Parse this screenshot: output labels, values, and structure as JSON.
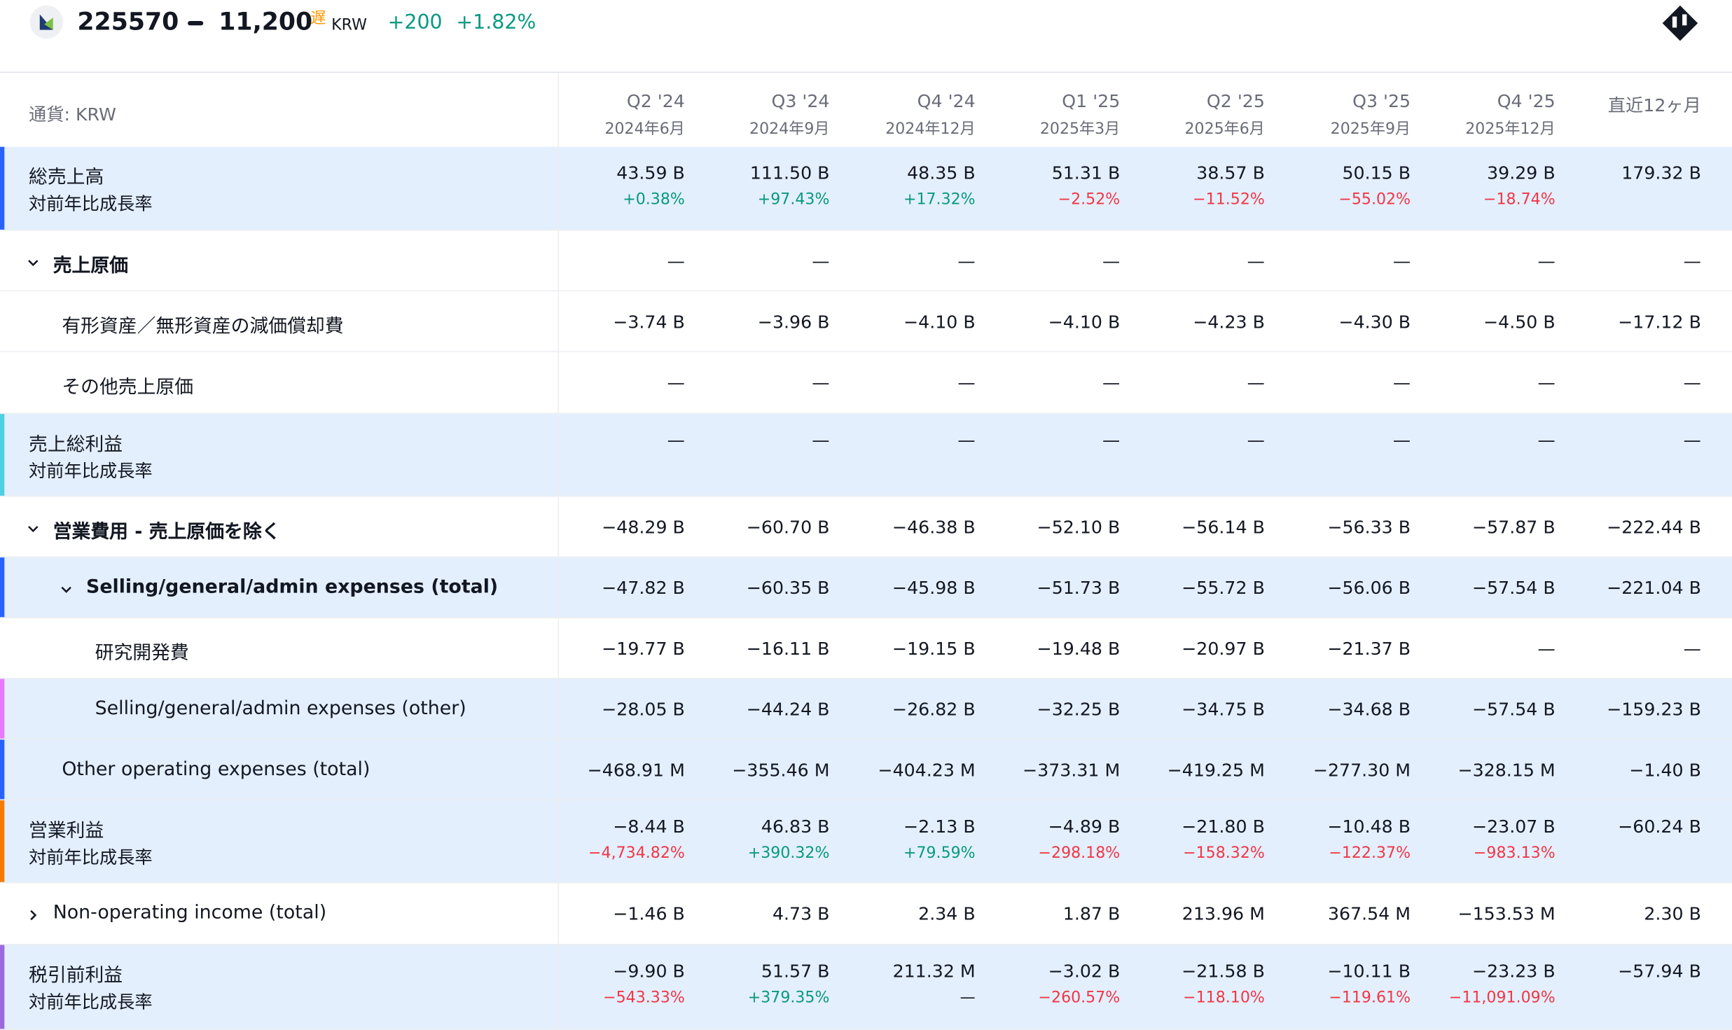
{
  "header": {
    "symbol": "225570",
    "price": "11,200",
    "delayed": "遅",
    "currency": "KRW",
    "change": "+200",
    "change_pct": "+1.82%"
  },
  "table": {
    "currency_label": "通貨: KRW",
    "columns": [
      {
        "period": "Q2 '24",
        "date": "2024年6月"
      },
      {
        "period": "Q3 '24",
        "date": "2024年9月"
      },
      {
        "period": "Q4 '24",
        "date": "2024年12月"
      },
      {
        "period": "Q1 '25",
        "date": "2025年3月"
      },
      {
        "period": "Q2 '25",
        "date": "2025年6月"
      },
      {
        "period": "Q3 '25",
        "date": "2025年9月"
      },
      {
        "period": "Q4 '25",
        "date": "2025年12月"
      },
      {
        "period": "直近12ヶ月"
      }
    ],
    "rows": [
      {
        "label": "総売上高",
        "values": [
          "43.59 B",
          "111.50 B",
          "48.35 B",
          "51.31 B",
          "38.57 B",
          "50.15 B",
          "39.29 B",
          "179.32 B"
        ],
        "growth_label": "対前年比成長率",
        "growth": [
          "+0.38%",
          "+97.43%",
          "+17.32%",
          "−2.52%",
          "−11.52%",
          "−55.02%",
          "−18.74%"
        ]
      },
      {
        "label": "売上原価",
        "values": [
          "—",
          "—",
          "—",
          "—",
          "—",
          "—",
          "—",
          "—"
        ]
      },
      {
        "label": "有形資産／無形資産の減価償却費",
        "values": [
          "−3.74 B",
          "−3.96 B",
          "−4.10 B",
          "−4.10 B",
          "−4.23 B",
          "−4.30 B",
          "−4.50 B",
          "−17.12 B"
        ]
      },
      {
        "label": "その他売上原価",
        "values": [
          "—",
          "—",
          "—",
          "—",
          "—",
          "—",
          "—",
          "—"
        ]
      },
      {
        "label": "売上総利益",
        "values": [
          "—",
          "—",
          "—",
          "—",
          "—",
          "—",
          "—",
          "—"
        ],
        "growth_label": "対前年比成長率"
      },
      {
        "label": "営業費用 - 売上原価を除く",
        "values": [
          "−48.29 B",
          "−60.70 B",
          "−46.38 B",
          "−52.10 B",
          "−56.14 B",
          "−56.33 B",
          "−57.87 B",
          "−222.44 B"
        ]
      },
      {
        "label": "Selling/general/admin expenses (total)",
        "values": [
          "−47.82 B",
          "−60.35 B",
          "−45.98 B",
          "−51.73 B",
          "−55.72 B",
          "−56.06 B",
          "−57.54 B",
          "−221.04 B"
        ]
      },
      {
        "label": "研究開発費",
        "values": [
          "−19.77 B",
          "−16.11 B",
          "−19.15 B",
          "−19.48 B",
          "−20.97 B",
          "−21.37 B",
          "—",
          "—"
        ]
      },
      {
        "label": "Selling/general/admin expenses (other)",
        "values": [
          "−28.05 B",
          "−44.24 B",
          "−26.82 B",
          "−32.25 B",
          "−34.75 B",
          "−34.68 B",
          "−57.54 B",
          "−159.23 B"
        ]
      },
      {
        "label": "Other operating expenses (total)",
        "values": [
          "−468.91 M",
          "−355.46 M",
          "−404.23 M",
          "−373.31 M",
          "−419.25 M",
          "−277.30 M",
          "−328.15 M",
          "−1.40 B"
        ]
      },
      {
        "label": "営業利益",
        "values": [
          "−8.44 B",
          "46.83 B",
          "−2.13 B",
          "−4.89 B",
          "−21.80 B",
          "−10.48 B",
          "−23.07 B",
          "−60.24 B"
        ],
        "growth_label": "対前年比成長率",
        "growth": [
          "−4,734.82%",
          "+390.32%",
          "+79.59%",
          "−298.18%",
          "−158.32%",
          "−122.37%",
          "−983.13%"
        ]
      },
      {
        "label": "Non-operating income (total)",
        "values": [
          "−1.46 B",
          "4.73 B",
          "2.34 B",
          "1.87 B",
          "213.96 M",
          "367.54 M",
          "−153.53 M",
          "2.30 B"
        ]
      },
      {
        "label": "税引前利益",
        "values": [
          "−9.90 B",
          "51.57 B",
          "211.32 M",
          "−3.02 B",
          "−21.58 B",
          "−10.11 B",
          "−23.23 B",
          "−57.94 B"
        ],
        "growth_label": "対前年比成長率",
        "growth": [
          "−543.33%",
          "+379.35%",
          "—",
          "−260.57%",
          "−118.10%",
          "−119.61%",
          "−11,091.09%"
        ]
      }
    ]
  }
}
